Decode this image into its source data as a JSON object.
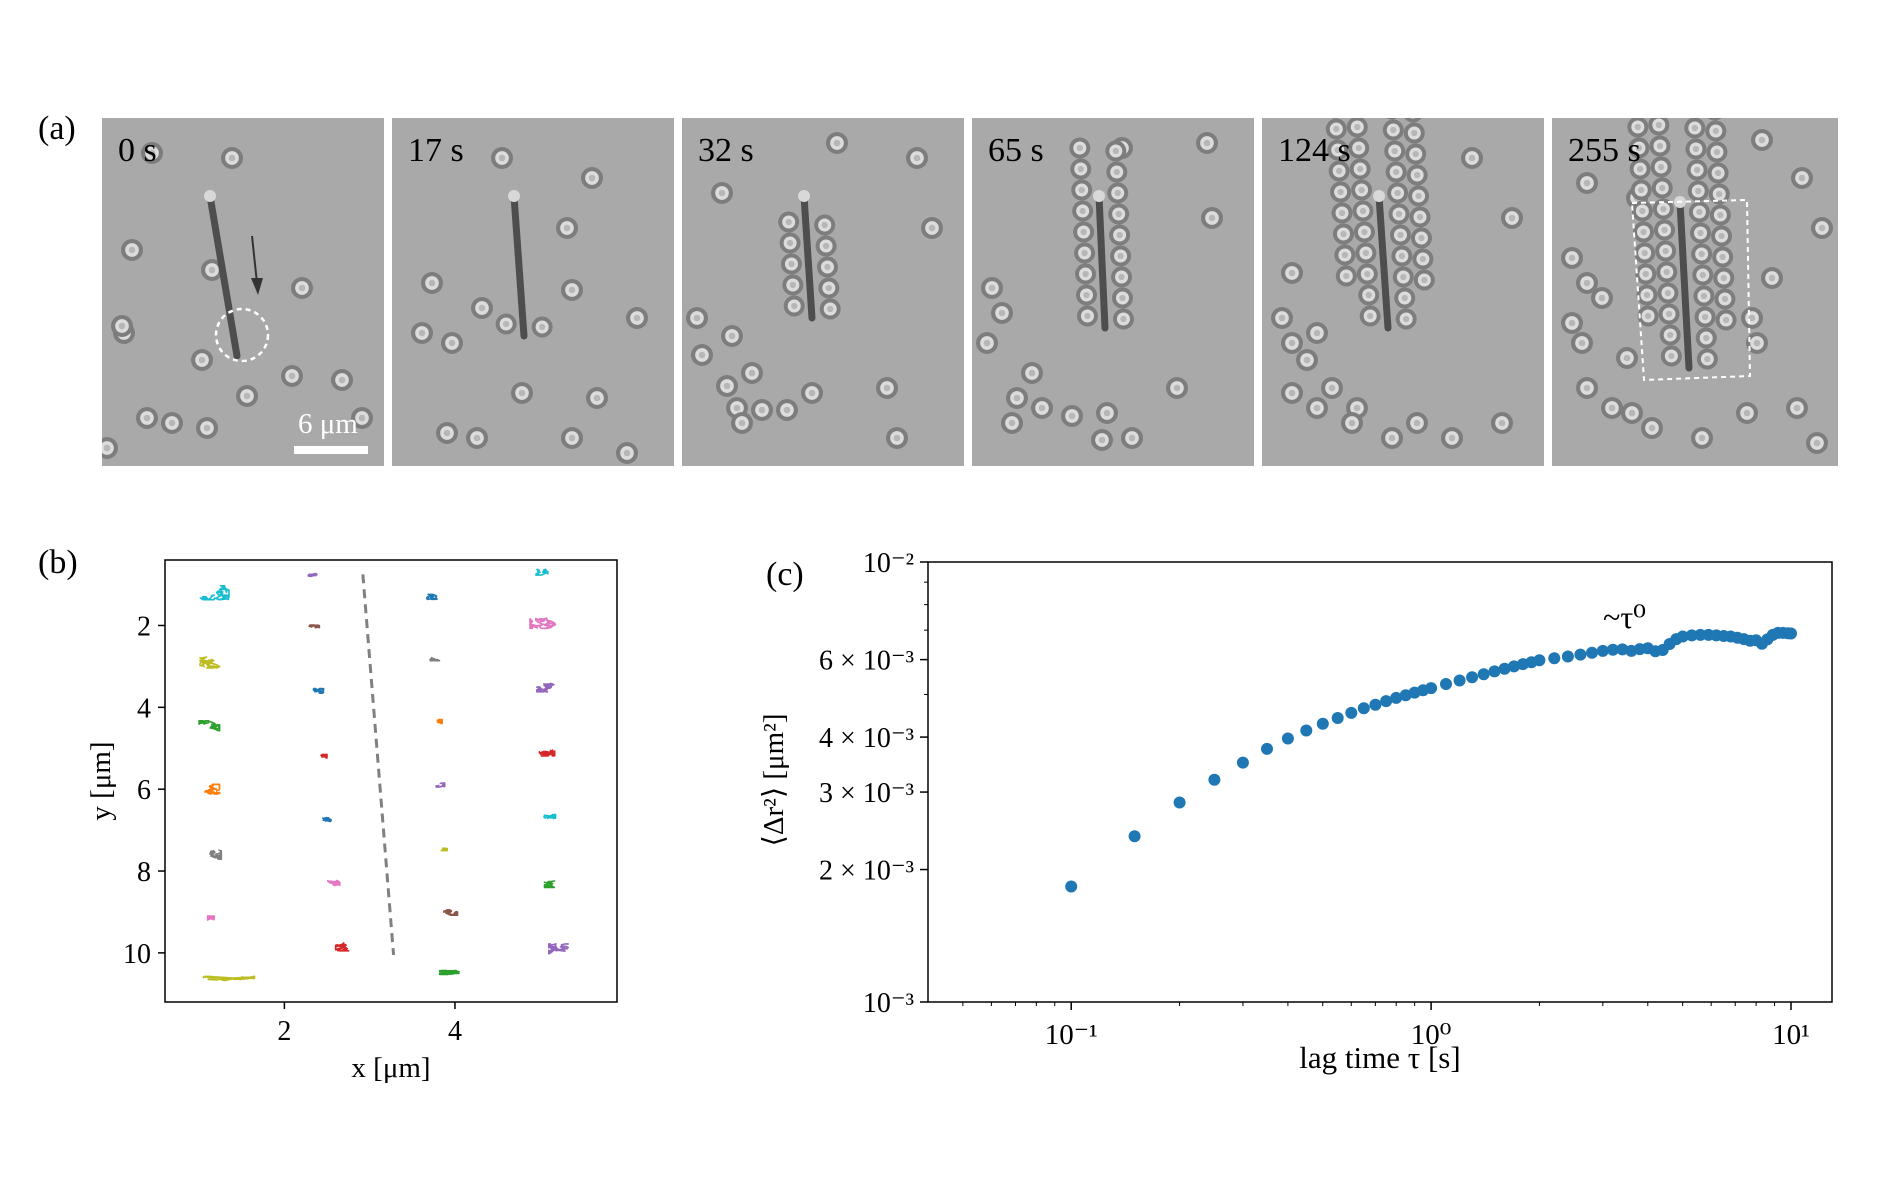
{
  "figure": {
    "panel_labels": {
      "a": "(a)",
      "b": "(b)",
      "c": "(c)"
    },
    "frames": [
      {
        "time": "0 s"
      },
      {
        "time": "17 s"
      },
      {
        "time": "32 s"
      },
      {
        "time": "65 s"
      },
      {
        "time": "124 s"
      },
      {
        "time": "255 s"
      }
    ],
    "scale_bar_label": "6 μm",
    "colors": {
      "frame_background": "#a9a9a9",
      "particle_dark": "#7d7d7d",
      "particle_light": "#dcdcdc",
      "rod": "#4e4e4e",
      "series": "#1f77b4"
    },
    "annotation_c": "~τ⁰"
  },
  "chart_data": [
    {
      "type": "scatter",
      "panel": "(b)",
      "xlabel": "x [μm]",
      "ylabel": "y [μm]",
      "xlim": [
        0.6,
        5.9
      ],
      "ylim": [
        11.2,
        0.4
      ],
      "y_inverted": true,
      "xticks": [
        2,
        4
      ],
      "yticks": [
        2,
        4,
        6,
        8,
        10
      ],
      "trajectory_clusters": [
        {
          "x": 1.18,
          "y": 1.2,
          "color": "#17becf",
          "spread": 0.17
        },
        {
          "x": 1.15,
          "y": 2.9,
          "color": "#bcbd22",
          "spread": 0.14
        },
        {
          "x": 1.12,
          "y": 4.45,
          "color": "#2ca02c",
          "spread": 0.12
        },
        {
          "x": 1.12,
          "y": 6.0,
          "color": "#ff7f0e",
          "spread": 0.12
        },
        {
          "x": 1.15,
          "y": 7.6,
          "color": "#7f7f7f",
          "spread": 0.11
        },
        {
          "x": 1.2,
          "y": 9.2,
          "color": "#e377c2",
          "spread": 0.1
        },
        {
          "x": 1.35,
          "y": 10.6,
          "color": "#bcbd22",
          "spread": 0.3
        },
        {
          "x": 2.33,
          "y": 0.75,
          "color": "#9467bd",
          "spread": 0.05
        },
        {
          "x": 2.35,
          "y": 2.05,
          "color": "#8c564b",
          "spread": 0.06
        },
        {
          "x": 2.4,
          "y": 3.6,
          "color": "#1f77b4",
          "spread": 0.06
        },
        {
          "x": 2.45,
          "y": 5.2,
          "color": "#d62728",
          "spread": 0.05
        },
        {
          "x": 2.5,
          "y": 6.75,
          "color": "#1f77b4",
          "spread": 0.05
        },
        {
          "x": 2.58,
          "y": 8.3,
          "color": "#e377c2",
          "spread": 0.07
        },
        {
          "x": 2.7,
          "y": 9.85,
          "color": "#d62728",
          "spread": 0.1
        },
        {
          "x": 3.73,
          "y": 1.3,
          "color": "#1f77b4",
          "spread": 0.06
        },
        {
          "x": 3.77,
          "y": 2.8,
          "color": "#7f7f7f",
          "spread": 0.06
        },
        {
          "x": 3.8,
          "y": 4.35,
          "color": "#ff7f0e",
          "spread": 0.05
        },
        {
          "x": 3.83,
          "y": 5.9,
          "color": "#9467bd",
          "spread": 0.05
        },
        {
          "x": 3.86,
          "y": 7.45,
          "color": "#bcbd22",
          "spread": 0.05
        },
        {
          "x": 3.95,
          "y": 9.0,
          "color": "#8c564b",
          "spread": 0.08
        },
        {
          "x": 4.0,
          "y": 10.5,
          "color": "#2ca02c",
          "spread": 0.18
        },
        {
          "x": 5.02,
          "y": 0.7,
          "color": "#17becf",
          "spread": 0.07
        },
        {
          "x": 5.05,
          "y": 1.9,
          "color": "#e377c2",
          "spread": 0.17
        },
        {
          "x": 5.08,
          "y": 3.5,
          "color": "#9467bd",
          "spread": 0.12
        },
        {
          "x": 5.08,
          "y": 5.1,
          "color": "#d62728",
          "spread": 0.09
        },
        {
          "x": 5.1,
          "y": 6.7,
          "color": "#17becf",
          "spread": 0.08
        },
        {
          "x": 5.15,
          "y": 8.3,
          "color": "#2ca02c",
          "spread": 0.1
        },
        {
          "x": 5.22,
          "y": 9.9,
          "color": "#9467bd",
          "spread": 0.12
        }
      ],
      "dashed_line": {
        "x": [
          2.92,
          3.28
        ],
        "y": [
          0.75,
          10.05
        ],
        "color": "#808080"
      }
    },
    {
      "type": "scatter",
      "panel": "(c)",
      "xlabel": "lag time τ [s]",
      "ylabel": "⟨Δr²⟩ [μm²]",
      "x_scale": "log",
      "y_scale": "log",
      "xlim": [
        0.04,
        13
      ],
      "ylim": [
        0.001,
        0.01
      ],
      "xtick_labels": [
        "10⁻¹",
        "10⁰",
        "10¹"
      ],
      "ytick_labels": [
        "10⁻³",
        "2 × 10⁻³",
        "3 × 10⁻³",
        "4 × 10⁻³",
        "6 × 10⁻³",
        "10⁻²"
      ],
      "ytick_values": [
        0.001,
        0.002,
        0.003,
        0.004,
        0.006,
        0.01
      ],
      "series_color": "#1f77b4",
      "x": [
        0.1,
        0.15,
        0.2,
        0.25,
        0.3,
        0.35,
        0.4,
        0.45,
        0.5,
        0.55,
        0.6,
        0.65,
        0.7,
        0.75,
        0.8,
        0.85,
        0.9,
        0.95,
        1.0,
        1.1,
        1.2,
        1.3,
        1.4,
        1.5,
        1.6,
        1.7,
        1.8,
        1.9,
        2.0,
        2.2,
        2.4,
        2.6,
        2.8,
        3.0,
        3.2,
        3.4,
        3.6,
        3.8,
        4.0,
        4.2,
        4.4,
        4.6,
        4.8,
        5.0,
        5.3,
        5.6,
        5.9,
        6.2,
        6.5,
        6.8,
        7.1,
        7.4,
        7.7,
        8.0,
        8.3,
        8.6,
        8.9,
        9.2,
        9.5,
        9.8,
        10.0
      ],
      "y": [
        0.00183,
        0.00238,
        0.00284,
        0.0032,
        0.0035,
        0.00376,
        0.00397,
        0.00414,
        0.00429,
        0.00442,
        0.00454,
        0.00465,
        0.00474,
        0.00483,
        0.00491,
        0.00498,
        0.00505,
        0.00511,
        0.00517,
        0.00528,
        0.00538,
        0.00547,
        0.00556,
        0.00564,
        0.00572,
        0.00579,
        0.00586,
        0.00592,
        0.00598,
        0.00604,
        0.0061,
        0.00616,
        0.00622,
        0.00628,
        0.00632,
        0.00633,
        0.00628,
        0.00634,
        0.00637,
        0.00627,
        0.00631,
        0.00651,
        0.00668,
        0.00677,
        0.00681,
        0.00683,
        0.00683,
        0.00681,
        0.00679,
        0.00677,
        0.00673,
        0.00668,
        0.00662,
        0.00664,
        0.00652,
        0.00667,
        0.00683,
        0.0069,
        0.0069,
        0.00689,
        0.00688
      ]
    }
  ]
}
